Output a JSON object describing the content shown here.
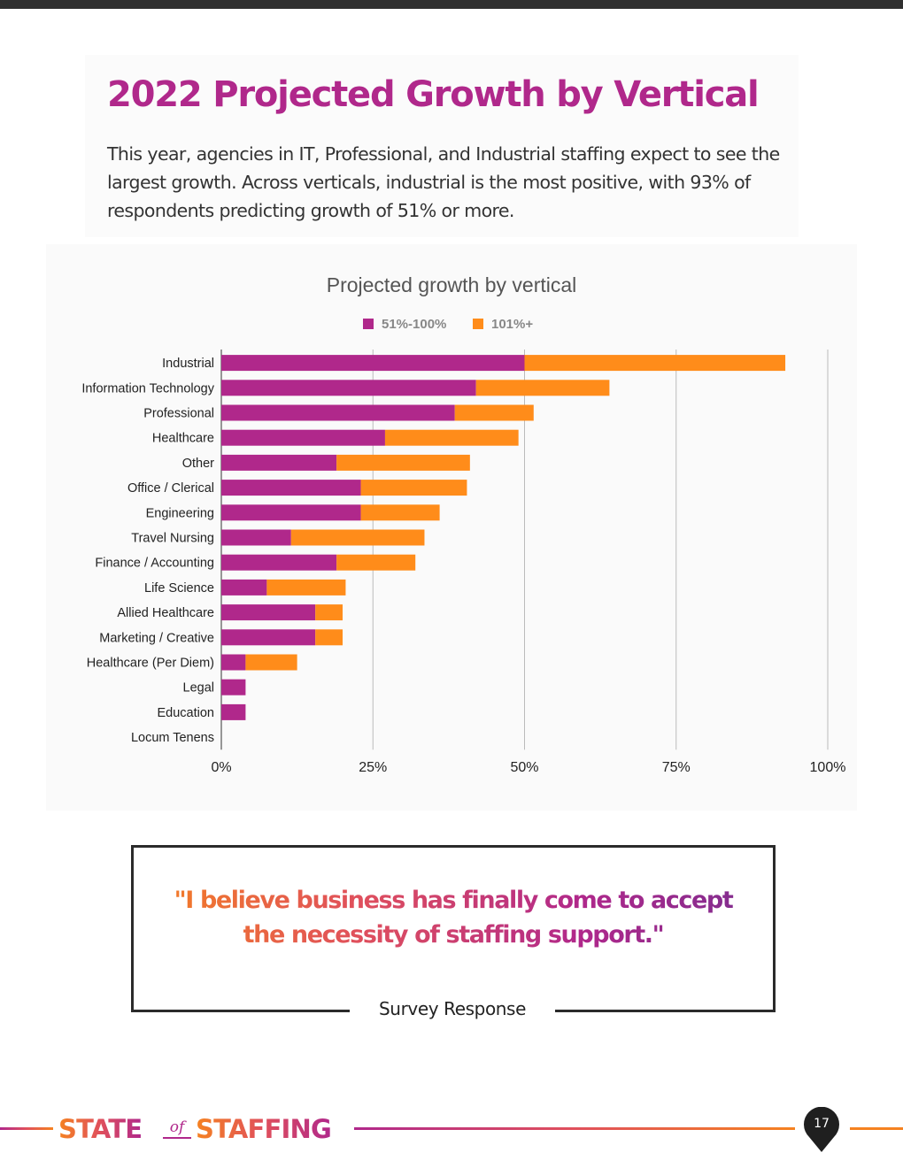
{
  "title": "2022 Projected Growth by Vertical",
  "intro": "This year, agencies in IT, Professional, and Industrial staffing expect to see the largest growth. Across verticals, industrial is the most positive, with 93% of respondents predicting growth of 51% or more.",
  "chart_data": {
    "type": "bar",
    "orientation": "horizontal",
    "stacked": true,
    "title": "Projected growth by vertical",
    "xlabel": "",
    "ylabel": "",
    "xlim": [
      0,
      100
    ],
    "x_ticks": [
      "0%",
      "25%",
      "50%",
      "75%",
      "100%"
    ],
    "grid": true,
    "legend_position": "top",
    "categories": [
      "Industrial",
      "Information Technology",
      "Professional",
      "Healthcare",
      "Other",
      "Office / Clerical",
      "Engineering",
      "Travel Nursing",
      "Finance / Accounting",
      "Life Science",
      "Allied Healthcare",
      "Marketing / Creative",
      "Healthcare (Per Diem)",
      "Legal",
      "Education",
      "Locum Tenens"
    ],
    "series": [
      {
        "name": "51%-100%",
        "color": "#b0288b",
        "values": [
          50,
          42,
          38.5,
          27,
          19,
          23,
          23,
          11.5,
          19,
          7.5,
          15.5,
          15.5,
          4,
          4,
          4,
          0
        ]
      },
      {
        "name": "101%+",
        "color": "#ff8c1a",
        "values": [
          43,
          22,
          13,
          22,
          22,
          17.5,
          13,
          22,
          13,
          13,
          4.5,
          4.5,
          8.5,
          0,
          0,
          0
        ]
      }
    ]
  },
  "quote": {
    "line1": "\"I believe business has finally come to accept",
    "line2": "the necessity of staffing support.\"",
    "caption": "Survey Response"
  },
  "footer": {
    "brand_state": "STATE",
    "brand_of": "of",
    "brand_staffing": "STAFFING",
    "page_number": "17"
  },
  "colors": {
    "accent_magenta": "#b0288b",
    "accent_orange": "#f58220",
    "dark": "#2f2f2f"
  }
}
